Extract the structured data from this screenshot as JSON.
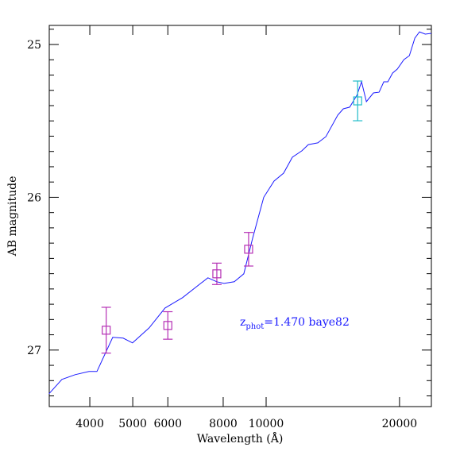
{
  "chart_data": {
    "type": "line",
    "x_label": "Wavelength (Å)",
    "y_label": "AB magnitude",
    "xscale": "log",
    "xlim": [
      3240,
      23600
    ],
    "ylim": [
      27.37,
      24.875
    ],
    "xticks": [
      4000,
      5000,
      6000,
      8000,
      10000,
      20000
    ],
    "yticks": [
      25,
      26,
      27
    ],
    "yminorticks": [
      24.9,
      25.1,
      25.2,
      25.3,
      25.4,
      25.5,
      25.6,
      25.7,
      25.8,
      25.9,
      26.1,
      26.2,
      26.3,
      26.4,
      26.5,
      26.6,
      26.7,
      26.8,
      26.9,
      27.1,
      27.2,
      27.3
    ],
    "annotation": {
      "base": "z",
      "subscript": "phot",
      "text": "=1.470 baye82",
      "color": "#1a1aff"
    },
    "series": [
      {
        "type": "line",
        "color": "#1a1aff",
        "x": [
          3236,
          3460,
          3706,
          3985,
          4150,
          4506,
          4756,
          4993,
          5443,
          5912,
          6478,
          7389,
          7740,
          8034,
          8473,
          8906,
          9322,
          9877,
          10420,
          10950,
          11460,
          12040,
          12450,
          13080,
          13640,
          14510,
          14940,
          15440,
          16030,
          16420,
          16840,
          17470,
          17990,
          18430,
          18820,
          19290,
          19770,
          20460,
          21050,
          21660,
          22190,
          22860,
          23600
        ],
        "values": [
          27.286,
          27.192,
          27.161,
          27.14,
          27.14,
          26.917,
          26.922,
          26.953,
          26.855,
          26.725,
          26.657,
          26.527,
          26.553,
          26.564,
          26.553,
          26.501,
          26.268,
          26.0,
          25.894,
          25.842,
          25.738,
          25.696,
          25.655,
          25.644,
          25.603,
          25.462,
          25.421,
          25.41,
          25.332,
          25.244,
          25.374,
          25.317,
          25.312,
          25.244,
          25.244,
          25.187,
          25.161,
          25.099,
          25.073,
          24.958,
          24.917,
          24.932,
          24.927
        ]
      },
      {
        "type": "errorbar",
        "x": [
          4356,
          6000,
          7740,
          9130,
          16090
        ],
        "values": [
          26.87,
          26.839,
          26.501,
          26.34,
          25.369
        ],
        "errors": [
          0.15,
          0.09,
          0.07,
          0.11,
          0.13
        ],
        "colors": [
          "#b52fb5",
          "#b52fb5",
          "#b52fb5",
          "#b52fb5",
          "#1fbcc9"
        ]
      }
    ]
  }
}
